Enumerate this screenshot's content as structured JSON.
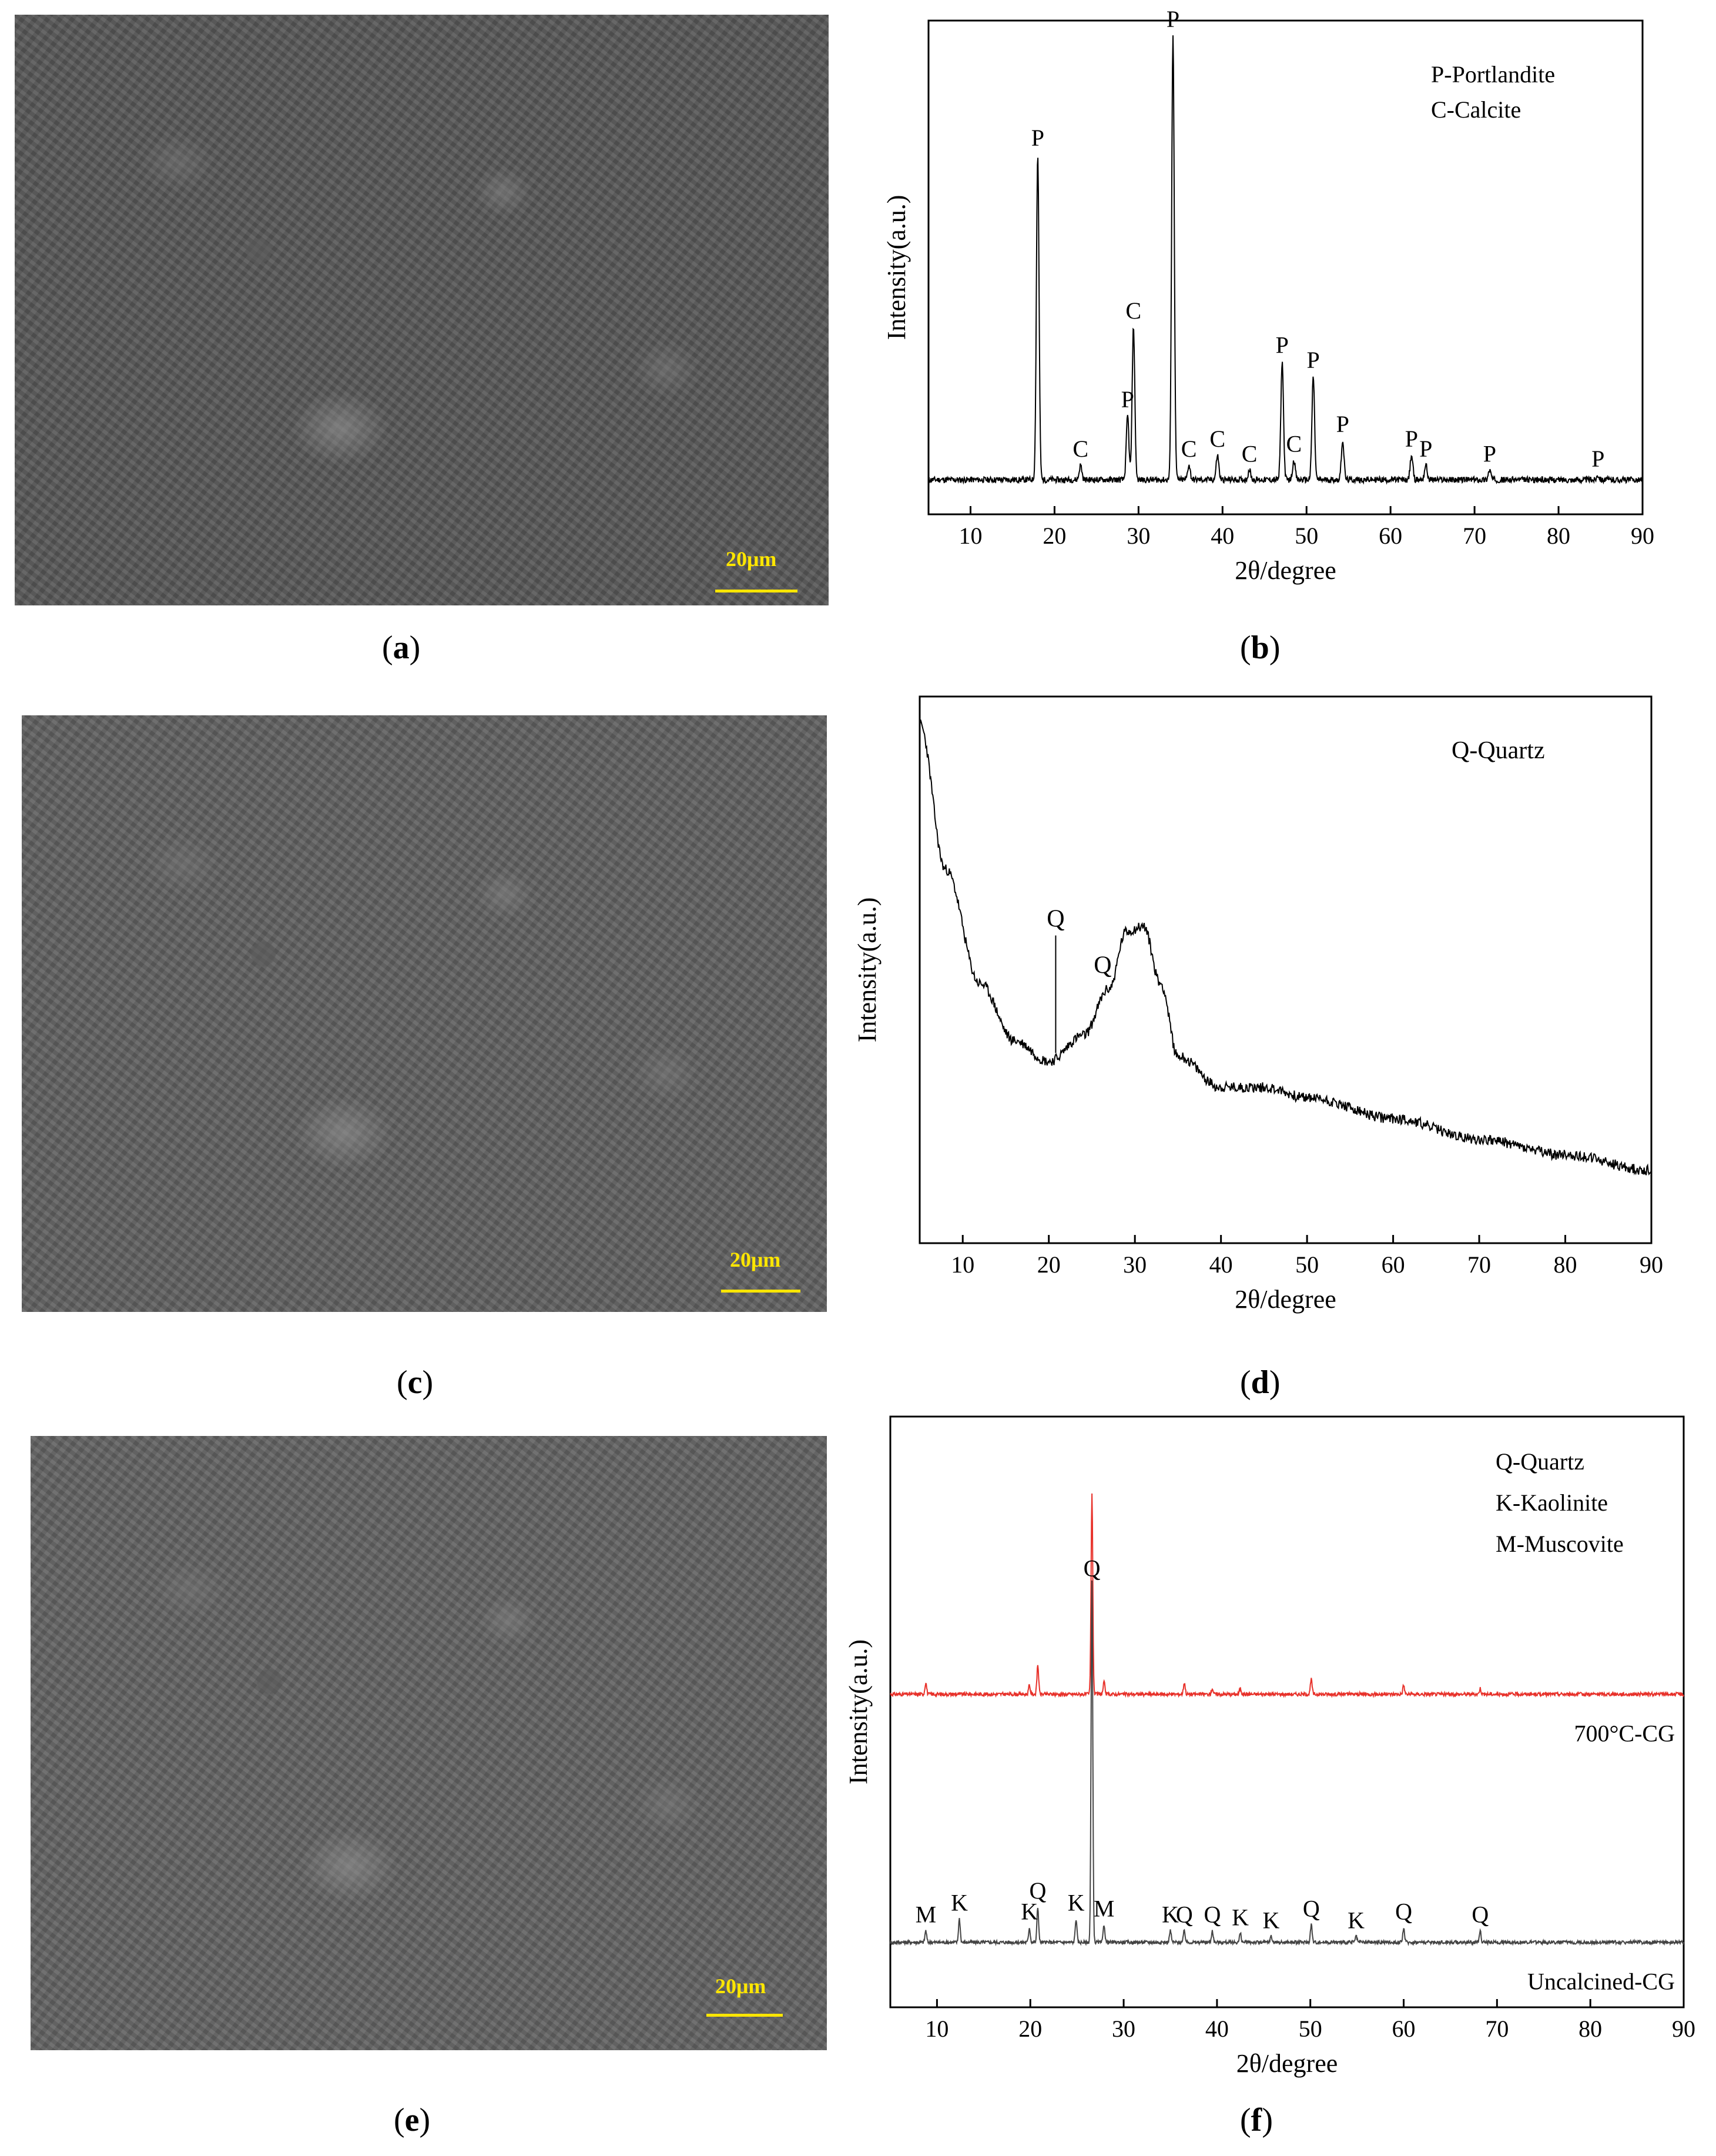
{
  "panels": {
    "a": {
      "label": "a",
      "scale_bar": "20μm"
    },
    "c": {
      "label": "c",
      "scale_bar": "20μm"
    },
    "e": {
      "label": "e",
      "scale_bar": "20μm"
    },
    "b": {
      "label": "b"
    },
    "d": {
      "label": "d"
    },
    "f": {
      "label": "f"
    }
  },
  "chart_data": [
    {
      "id": "b",
      "type": "line",
      "xlabel": "2θ/degree",
      "ylabel": "Intensity(a.u.)",
      "xlim": [
        5,
        90
      ],
      "xticks": [
        10,
        20,
        30,
        40,
        50,
        60,
        70,
        80,
        90
      ],
      "legend": [
        "P-Portlandite",
        "C-Calcite"
      ],
      "baseline": 0.07,
      "peaks": [
        {
          "x": 18.0,
          "y": 0.73,
          "label": "P"
        },
        {
          "x": 23.1,
          "y": 0.1,
          "label": "C"
        },
        {
          "x": 28.7,
          "y": 0.2,
          "label": "P"
        },
        {
          "x": 29.4,
          "y": 0.38,
          "label": "C"
        },
        {
          "x": 34.1,
          "y": 0.97,
          "label": "P"
        },
        {
          "x": 36.0,
          "y": 0.1,
          "label": "C"
        },
        {
          "x": 39.4,
          "y": 0.12,
          "label": "C"
        },
        {
          "x": 43.2,
          "y": 0.09,
          "label": "C"
        },
        {
          "x": 47.1,
          "y": 0.31,
          "label": "P"
        },
        {
          "x": 48.5,
          "y": 0.11,
          "label": "C"
        },
        {
          "x": 50.8,
          "y": 0.28,
          "label": "P"
        },
        {
          "x": 54.3,
          "y": 0.15,
          "label": "P"
        },
        {
          "x": 62.5,
          "y": 0.12,
          "label": "P"
        },
        {
          "x": 64.2,
          "y": 0.1,
          "label": "P"
        },
        {
          "x": 71.8,
          "y": 0.09,
          "label": "P"
        },
        {
          "x": 84.7,
          "y": 0.08,
          "label": "P"
        }
      ]
    },
    {
      "id": "d",
      "type": "line",
      "xlabel": "2θ/degree",
      "ylabel": "Intensity(a.u.)",
      "xlim": [
        5,
        90
      ],
      "xticks": [
        10,
        20,
        30,
        40,
        50,
        60,
        70,
        80,
        90
      ],
      "legend": [
        "Q-Quartz"
      ],
      "points": [
        [
          5,
          1.0
        ],
        [
          8,
          0.72
        ],
        [
          12,
          0.5
        ],
        [
          16,
          0.39
        ],
        [
          20,
          0.35
        ],
        [
          24,
          0.4
        ],
        [
          27,
          0.49
        ],
        [
          29,
          0.6
        ],
        [
          31,
          0.61
        ],
        [
          33,
          0.5
        ],
        [
          35,
          0.36
        ],
        [
          40,
          0.3
        ],
        [
          45,
          0.3
        ],
        [
          50,
          0.28
        ],
        [
          60,
          0.24
        ],
        [
          70,
          0.2
        ],
        [
          80,
          0.17
        ],
        [
          90,
          0.14
        ]
      ],
      "annotations": [
        {
          "x": 20.8,
          "label": "Q"
        },
        {
          "x": 26.6,
          "label": "Q"
        }
      ]
    },
    {
      "id": "f",
      "type": "line",
      "xlabel": "2θ/degree",
      "ylabel": "Intensity(a.u.)",
      "xlim": [
        5,
        90
      ],
      "xticks": [
        10,
        20,
        30,
        40,
        50,
        60,
        70,
        80,
        90
      ],
      "legend": [
        "Q-Quartz",
        "K-Kaolinite",
        "M-Muscovite"
      ],
      "series": [
        {
          "name": "700°C-CG",
          "color": "#e8312a",
          "baseline": 0.53,
          "peaks": [
            {
              "x": 8.8,
              "y": 0.55
            },
            {
              "x": 19.9,
              "y": 0.545
            },
            {
              "x": 20.8,
              "y": 0.58
            },
            {
              "x": 26.6,
              "y": 0.87
            },
            {
              "x": 27.9,
              "y": 0.55
            },
            {
              "x": 36.5,
              "y": 0.55
            },
            {
              "x": 39.5,
              "y": 0.54
            },
            {
              "x": 42.5,
              "y": 0.54
            },
            {
              "x": 50.1,
              "y": 0.555
            },
            {
              "x": 60.0,
              "y": 0.545
            },
            {
              "x": 68.2,
              "y": 0.54
            }
          ]
        },
        {
          "name": "Uncalcined-CG",
          "color": "#444444",
          "baseline": 0.11,
          "peaks": [
            {
              "x": 8.8,
              "y": 0.13,
              "label": "M"
            },
            {
              "x": 12.4,
              "y": 0.15,
              "label": "K"
            },
            {
              "x": 19.9,
              "y": 0.135,
              "label": "K"
            },
            {
              "x": 20.8,
              "y": 0.17,
              "label": "Q"
            },
            {
              "x": 24.9,
              "y": 0.15,
              "label": "K"
            },
            {
              "x": 26.6,
              "y": 0.72,
              "label": "Q"
            },
            {
              "x": 27.9,
              "y": 0.14,
              "label": "M"
            },
            {
              "x": 35.0,
              "y": 0.13,
              "label": "K"
            },
            {
              "x": 36.5,
              "y": 0.13,
              "label": "Q"
            },
            {
              "x": 39.5,
              "y": 0.13,
              "label": "Q"
            },
            {
              "x": 42.5,
              "y": 0.125,
              "label": "K"
            },
            {
              "x": 45.8,
              "y": 0.12,
              "label": "K"
            },
            {
              "x": 50.1,
              "y": 0.14,
              "label": "Q"
            },
            {
              "x": 54.9,
              "y": 0.12,
              "label": "K"
            },
            {
              "x": 60.0,
              "y": 0.135,
              "label": "Q"
            },
            {
              "x": 68.2,
              "y": 0.13,
              "label": "Q"
            }
          ]
        }
      ]
    }
  ]
}
